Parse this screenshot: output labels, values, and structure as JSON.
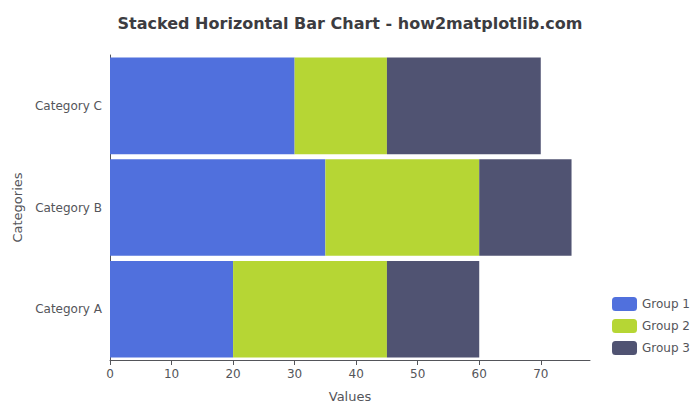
{
  "chart_data": {
    "type": "bar",
    "orientation": "horizontal",
    "stacked": true,
    "title": "Stacked Horizontal Bar Chart - how2matplotlib.com",
    "xlabel": "Values",
    "ylabel": "Categories",
    "categories": [
      "Category A",
      "Category B",
      "Category C"
    ],
    "series": [
      {
        "name": "Group 1",
        "values": [
          20,
          35,
          30
        ]
      },
      {
        "name": "Group 2",
        "values": [
          25,
          25,
          15
        ]
      },
      {
        "name": "Group 3",
        "values": [
          15,
          15,
          25
        ]
      }
    ],
    "xlim": [
      0,
      78
    ],
    "xticks": [
      0,
      10,
      20,
      30,
      40,
      50,
      60,
      70
    ],
    "legend": "lower right",
    "grid": false
  }
}
